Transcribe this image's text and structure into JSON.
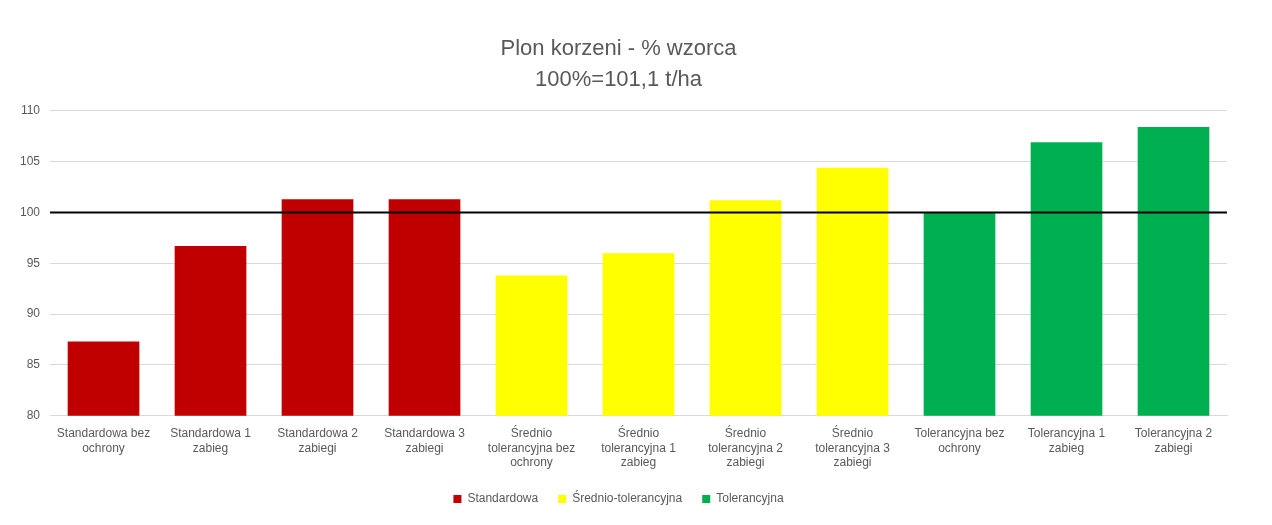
{
  "chart_data": {
    "type": "bar",
    "title": "Plon korzeni - % wzorca",
    "subtitle": "100%=101,1 t/ha",
    "categories": [
      "Standardowa bez ochrony",
      "Standardowa 1 zabieg",
      "Standardowa 2 zabiegi",
      "Standardowa 3 zabiegi",
      "Średnio tolerancyjna bez ochrony",
      "Średnio tolerancyjna 1 zabieg",
      "Średnio tolerancyjna 2 zabiegi",
      "Średnio tolerancyjna 3 zabiegi",
      "Tolerancyjna bez ochrony",
      "Tolerancyjna 1 zabieg",
      "Tolerancyjna 2 zabiegi"
    ],
    "series": [
      {
        "name": "Standardowa",
        "color": "#c00000",
        "values": [
          87.3,
          96.7,
          101.3,
          101.3,
          null,
          null,
          null,
          null,
          null,
          null,
          null
        ]
      },
      {
        "name": "Średnio-tolerancyjna",
        "color": "#ffff00",
        "values": [
          null,
          null,
          null,
          null,
          93.8,
          96.0,
          101.2,
          104.4,
          null,
          null,
          null
        ]
      },
      {
        "name": "Tolerancyjna",
        "color": "#00b050",
        "values": [
          null,
          null,
          null,
          null,
          null,
          null,
          null,
          null,
          100.0,
          106.9,
          108.4
        ]
      }
    ],
    "ylim": [
      80,
      110
    ],
    "yticks": [
      80,
      85,
      90,
      95,
      100,
      105,
      110
    ],
    "grid": "y",
    "legend": "bottom",
    "ref_lines": [
      {
        "axis": "y",
        "value": 100,
        "color": "#000000"
      }
    ]
  }
}
